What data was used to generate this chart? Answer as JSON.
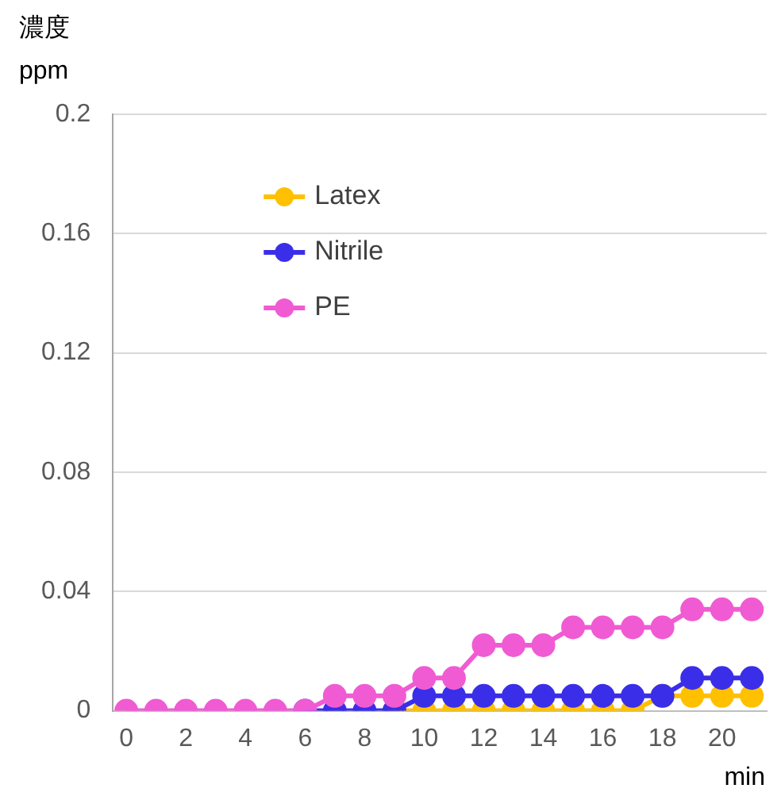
{
  "chart_data": {
    "type": "line",
    "ylabel": "濃度\nppm",
    "xlabel": "min",
    "x": [
      0,
      1,
      2,
      3,
      4,
      5,
      6,
      7,
      8,
      9,
      10,
      11,
      12,
      13,
      14,
      15,
      16,
      17,
      18,
      19,
      20,
      21
    ],
    "series": [
      {
        "name": "Latex",
        "color": "#ffc000",
        "values": [
          null,
          null,
          null,
          null,
          null,
          null,
          null,
          null,
          null,
          0,
          0,
          0,
          0,
          0,
          0,
          0,
          0,
          0,
          0.005,
          0.005,
          0.005,
          0.005
        ]
      },
      {
        "name": "Nitrile",
        "color": "#3b2ee8",
        "values": [
          null,
          null,
          null,
          null,
          null,
          null,
          0,
          0,
          0,
          0,
          0.005,
          0.005,
          0.005,
          0.005,
          0.005,
          0.005,
          0.005,
          0.005,
          0.005,
          0.011,
          0.011,
          0.011
        ]
      },
      {
        "name": "PE",
        "color": "#f05bd3",
        "values": [
          0,
          0,
          0,
          0,
          0,
          0,
          0,
          0.005,
          0.005,
          0.005,
          0.011,
          0.011,
          0.022,
          0.022,
          0.022,
          0.028,
          0.028,
          0.028,
          0.028,
          0.034,
          0.034,
          0.034
        ]
      }
    ],
    "xlim": [
      -0.45,
      21.5
    ],
    "xticks": [
      0,
      2,
      4,
      6,
      8,
      10,
      12,
      14,
      16,
      18,
      20
    ],
    "ylim": [
      0,
      0.2
    ],
    "yticks": [
      0,
      0.04,
      0.08,
      0.12,
      0.16,
      0.2
    ],
    "grid": "y",
    "legend": "top",
    "marker": "circle",
    "line_style": "solid"
  }
}
